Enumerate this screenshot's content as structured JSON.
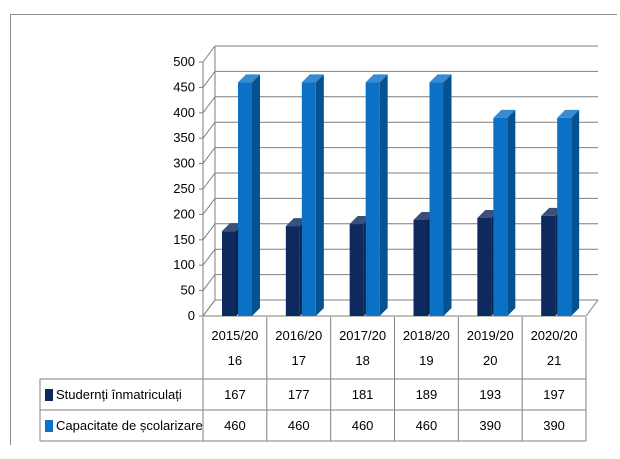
{
  "chart_data": {
    "type": "bar",
    "categories": [
      [
        "2015/20",
        "16"
      ],
      [
        "2016/20",
        "17"
      ],
      [
        "2017/20",
        "18"
      ],
      [
        "2018/20",
        "19"
      ],
      [
        "2019/20",
        "20"
      ],
      [
        "2020/20",
        "21"
      ]
    ],
    "series": [
      {
        "name": "Studernți înmatriculați",
        "values": [
          167,
          177,
          181,
          189,
          193,
          197
        ],
        "color": "#0d2a5e"
      },
      {
        "name": "Capacitate de școlarizare",
        "values": [
          460,
          460,
          460,
          460,
          390,
          390
        ],
        "color": "#0a71c7"
      }
    ],
    "y_ticks": [
      0,
      50,
      100,
      150,
      200,
      250,
      300,
      350,
      400,
      450,
      500
    ],
    "ylim": [
      0,
      500
    ],
    "grid": true,
    "style": "3d-clustered-column",
    "legend": "data-table"
  }
}
